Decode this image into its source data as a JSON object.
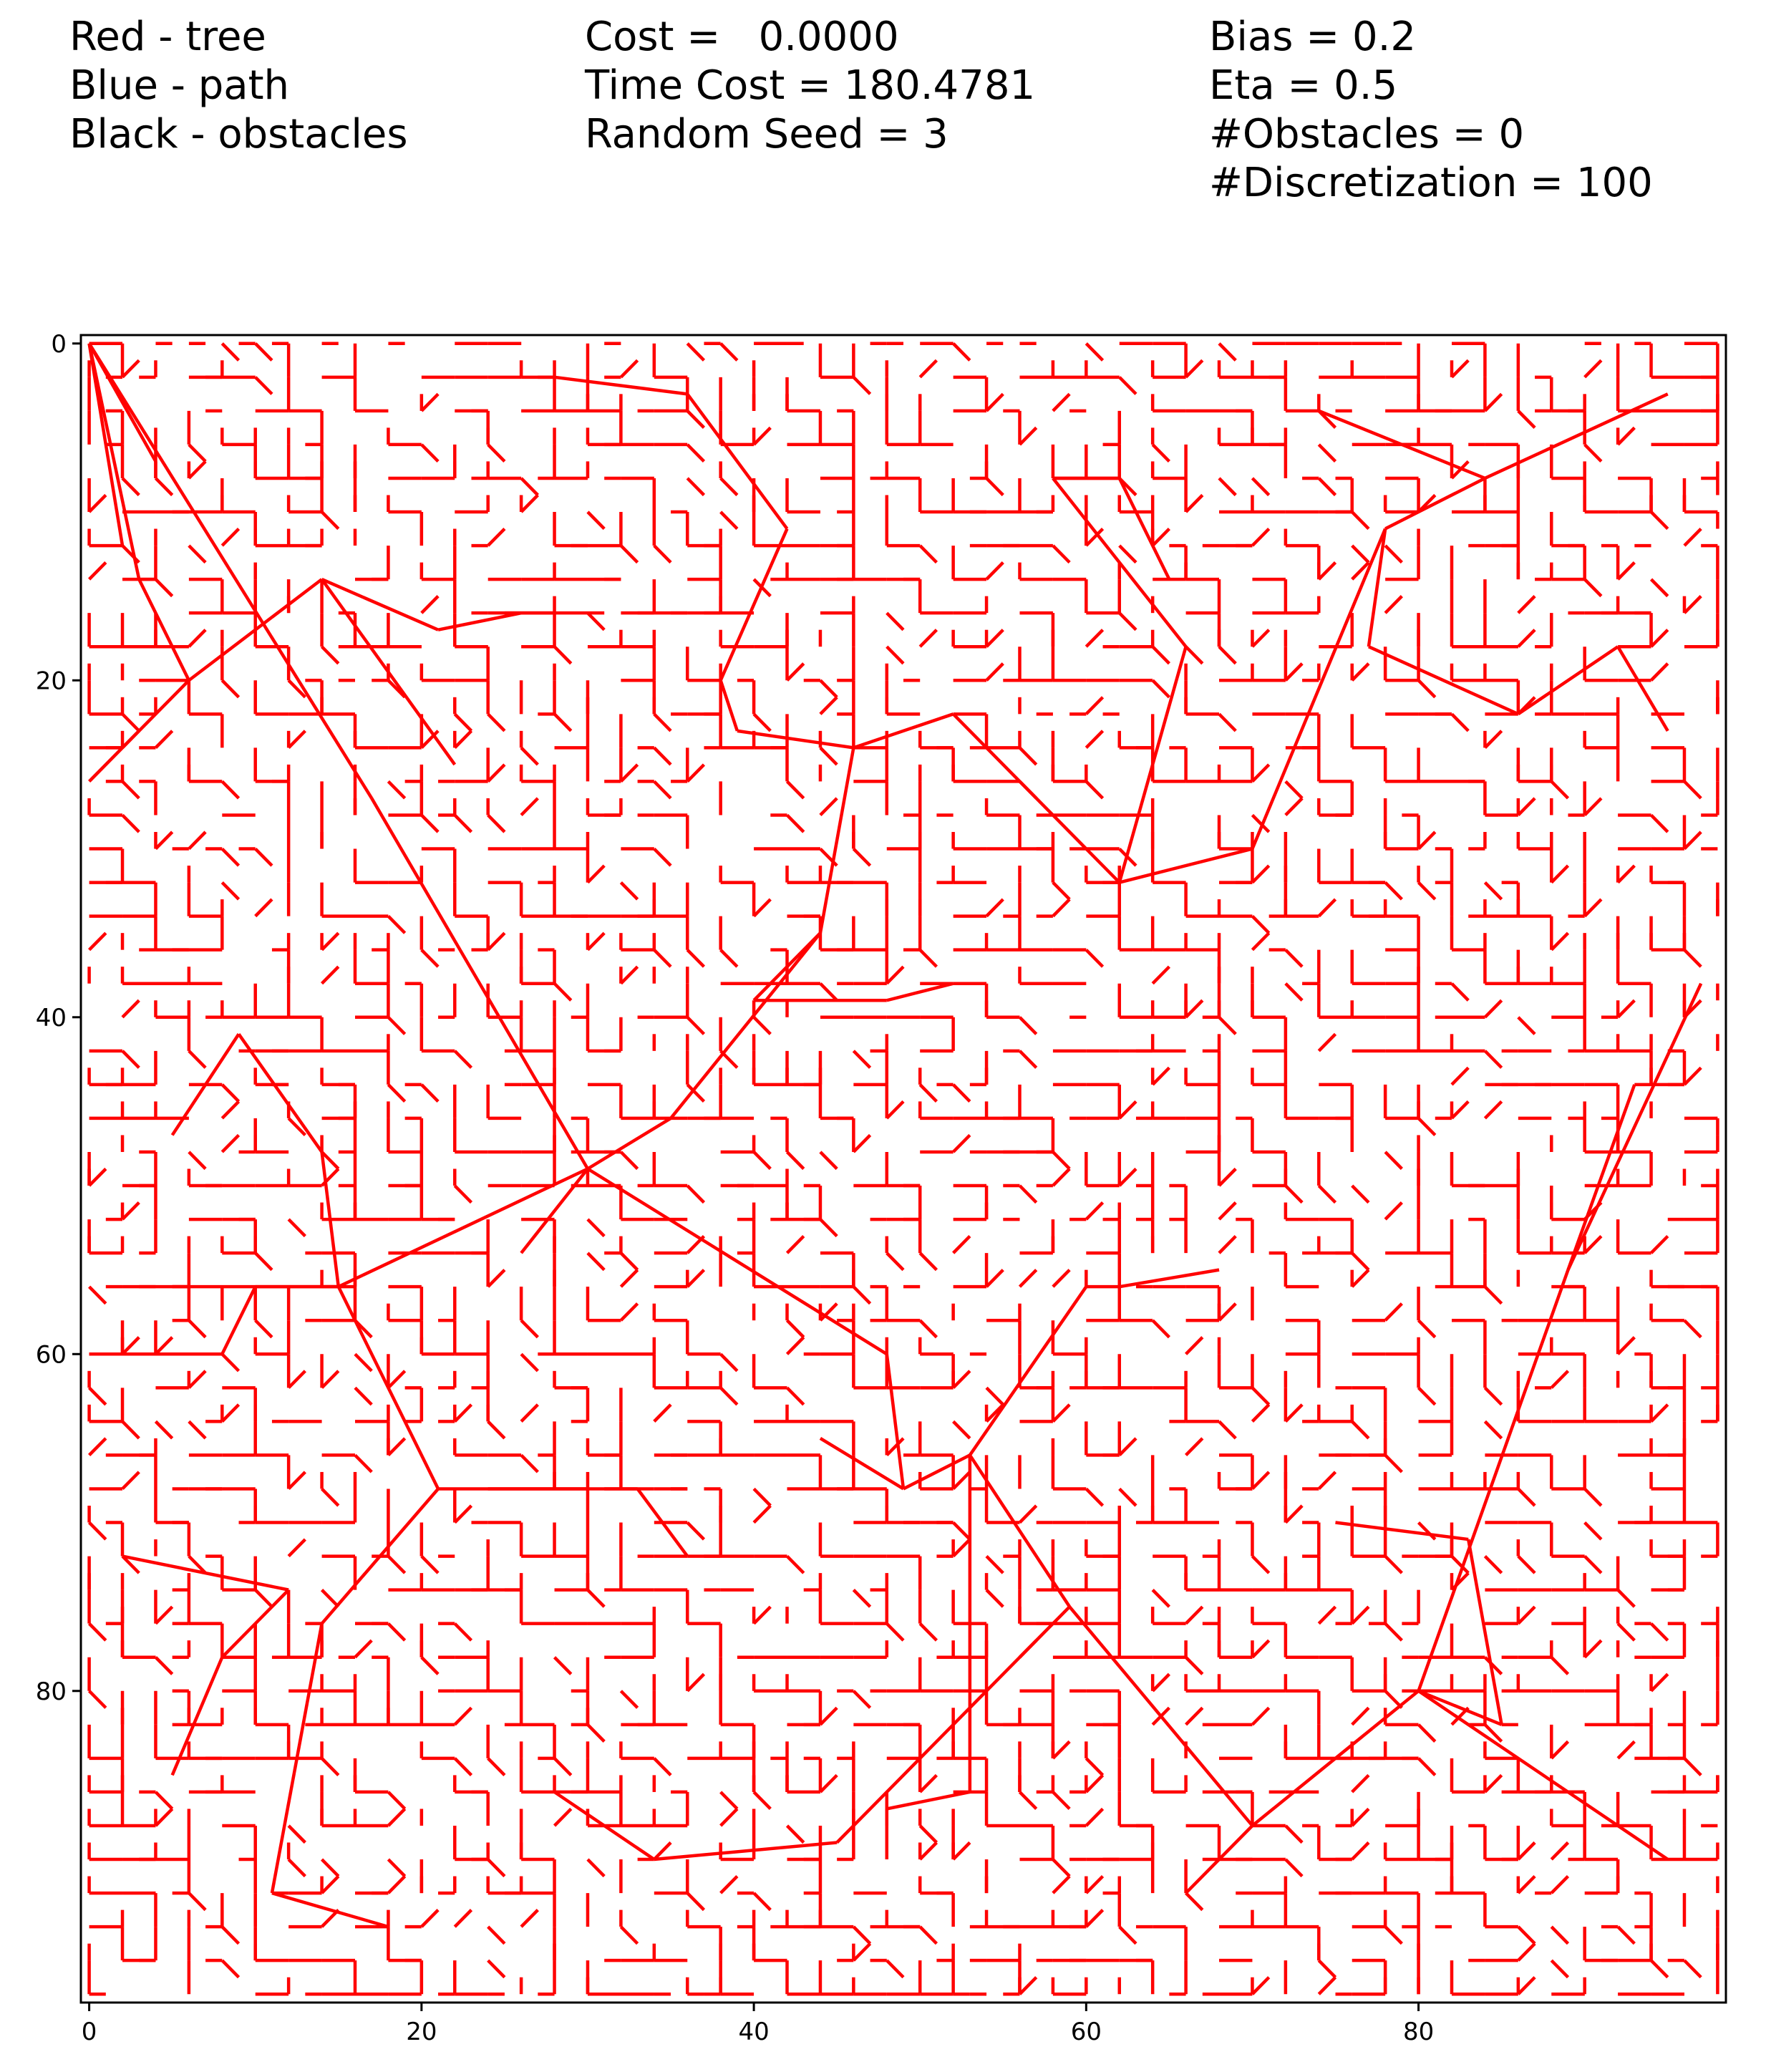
{
  "legend": {
    "col1": [
      "Red - tree",
      "Blue - path",
      "Black - obstacles"
    ],
    "col2": [
      "Cost =   0.0000",
      "Time Cost = 180.4781",
      "Random Seed = 3"
    ],
    "col3": [
      "Bias = 0.2",
      "Eta = 0.5",
      "#Obstacles = 0",
      "#Discretization = 100"
    ]
  },
  "chart_data": {
    "type": "line",
    "title": "",
    "xlabel": "",
    "ylabel": "",
    "xlim": [
      -0.5,
      98.5
    ],
    "ylim": [
      98.5,
      -0.5
    ],
    "y_inverted": true,
    "grid": false,
    "x_ticks": [
      0,
      20,
      40,
      60,
      80
    ],
    "y_ticks": [
      0,
      20,
      40,
      60,
      80
    ],
    "colors": {
      "tree": "#ff0000",
      "path": "#0000ff",
      "obstacles": "#000000",
      "axes": "#000000"
    },
    "obstacles": [],
    "path": [],
    "tree_hub_edges": [
      [
        [
          0,
          0
        ],
        [
          3,
          14
        ]
      ],
      [
        [
          0,
          0
        ],
        [
          17,
          27
        ]
      ],
      [
        [
          0,
          0
        ],
        [
          4,
          7
        ]
      ],
      [
        [
          0,
          0
        ],
        [
          2,
          12
        ]
      ],
      [
        [
          17,
          27
        ],
        [
          30,
          49
        ]
      ],
      [
        [
          30,
          49
        ],
        [
          35,
          46
        ]
      ],
      [
        [
          35,
          46
        ],
        [
          44,
          35
        ]
      ],
      [
        [
          44,
          35
        ],
        [
          46,
          24
        ]
      ],
      [
        [
          46,
          24
        ],
        [
          39,
          23
        ]
      ],
      [
        [
          39,
          23
        ],
        [
          38,
          20
        ]
      ],
      [
        [
          38,
          20
        ],
        [
          42,
          11
        ]
      ],
      [
        [
          42,
          11
        ],
        [
          36,
          3
        ]
      ],
      [
        [
          36,
          3
        ],
        [
          28,
          2
        ]
      ],
      [
        [
          46,
          24
        ],
        [
          52,
          22
        ]
      ],
      [
        [
          52,
          22
        ],
        [
          62,
          32
        ]
      ],
      [
        [
          62,
          32
        ],
        [
          70,
          30
        ]
      ],
      [
        [
          70,
          30
        ],
        [
          78,
          11
        ]
      ],
      [
        [
          78,
          11
        ],
        [
          84,
          8
        ]
      ],
      [
        [
          84,
          8
        ],
        [
          95,
          3
        ]
      ],
      [
        [
          84,
          8
        ],
        [
          74,
          4
        ]
      ],
      [
        [
          30,
          49
        ],
        [
          48,
          60
        ]
      ],
      [
        [
          48,
          60
        ],
        [
          49,
          68
        ]
      ],
      [
        [
          49,
          68
        ],
        [
          53,
          66
        ]
      ],
      [
        [
          53,
          66
        ],
        [
          60,
          56
        ]
      ],
      [
        [
          53,
          66
        ],
        [
          59,
          75
        ]
      ],
      [
        [
          59,
          75
        ],
        [
          70,
          88
        ]
      ],
      [
        [
          70,
          88
        ],
        [
          80,
          80
        ]
      ],
      [
        [
          80,
          80
        ],
        [
          89,
          55
        ]
      ],
      [
        [
          89,
          55
        ],
        [
          93,
          44
        ]
      ],
      [
        [
          89,
          55
        ],
        [
          97,
          38
        ]
      ],
      [
        [
          30,
          49
        ],
        [
          15,
          56
        ]
      ],
      [
        [
          15,
          56
        ],
        [
          21,
          68
        ]
      ],
      [
        [
          21,
          68
        ],
        [
          14,
          76
        ]
      ],
      [
        [
          14,
          76
        ],
        [
          11,
          92
        ]
      ],
      [
        [
          11,
          92
        ],
        [
          18,
          94
        ]
      ],
      [
        [
          21,
          68
        ],
        [
          33,
          68
        ]
      ],
      [
        [
          33,
          68
        ],
        [
          36,
          72
        ]
      ],
      [
        [
          3,
          14
        ],
        [
          6,
          20
        ]
      ],
      [
        [
          6,
          20
        ],
        [
          14,
          14
        ]
      ],
      [
        [
          14,
          14
        ],
        [
          22,
          25
        ]
      ],
      [
        [
          6,
          20
        ],
        [
          0,
          26
        ]
      ],
      [
        [
          14,
          14
        ],
        [
          21,
          17
        ]
      ],
      [
        [
          21,
          17
        ],
        [
          26,
          16
        ]
      ],
      [
        [
          26,
          16
        ],
        [
          31,
          16
        ]
      ],
      [
        [
          59,
          75
        ],
        [
          45,
          89
        ]
      ],
      [
        [
          45,
          89
        ],
        [
          34,
          90
        ]
      ],
      [
        [
          34,
          90
        ],
        [
          28,
          86
        ]
      ],
      [
        [
          80,
          80
        ],
        [
          95,
          90
        ]
      ],
      [
        [
          80,
          80
        ],
        [
          85,
          82
        ]
      ],
      [
        [
          85,
          82
        ],
        [
          83,
          71
        ]
      ],
      [
        [
          83,
          71
        ],
        [
          75,
          70
        ]
      ],
      [
        [
          62,
          32
        ],
        [
          66,
          18
        ]
      ],
      [
        [
          66,
          18
        ],
        [
          58,
          8
        ]
      ],
      [
        [
          58,
          8
        ],
        [
          62,
          8
        ]
      ],
      [
        [
          62,
          8
        ],
        [
          65,
          14
        ]
      ],
      [
        [
          78,
          11
        ],
        [
          77,
          18
        ]
      ],
      [
        [
          77,
          18
        ],
        [
          86,
          22
        ]
      ],
      [
        [
          86,
          22
        ],
        [
          92,
          18
        ]
      ],
      [
        [
          92,
          18
        ],
        [
          95,
          23
        ]
      ],
      [
        [
          44,
          35
        ],
        [
          40,
          39
        ]
      ],
      [
        [
          40,
          39
        ],
        [
          48,
          39
        ]
      ],
      [
        [
          48,
          39
        ],
        [
          52,
          38
        ]
      ],
      [
        [
          9,
          41
        ],
        [
          14,
          48
        ]
      ],
      [
        [
          14,
          48
        ],
        [
          15,
          56
        ]
      ],
      [
        [
          9,
          41
        ],
        [
          5,
          47
        ]
      ],
      [
        [
          12,
          74
        ],
        [
          2,
          72
        ]
      ],
      [
        [
          12,
          74
        ],
        [
          8,
          78
        ]
      ],
      [
        [
          8,
          78
        ],
        [
          5,
          85
        ]
      ],
      [
        [
          60,
          56
        ],
        [
          62,
          56
        ]
      ],
      [
        [
          62,
          56
        ],
        [
          68,
          55
        ]
      ],
      [
        [
          70,
          88
        ],
        [
          66,
          92
        ]
      ],
      [
        [
          49,
          68
        ],
        [
          44,
          65
        ]
      ],
      [
        [
          53,
          66
        ],
        [
          53,
          86
        ]
      ],
      [
        [
          53,
          86
        ],
        [
          48,
          87
        ]
      ],
      [
        [
          30,
          49
        ],
        [
          26,
          54
        ]
      ],
      [
        [
          15,
          56
        ],
        [
          5,
          56
        ]
      ],
      [
        [
          15,
          56
        ],
        [
          10,
          56
        ]
      ],
      [
        [
          10,
          56
        ],
        [
          8,
          60
        ]
      ],
      [
        [
          8,
          60
        ],
        [
          0,
          60
        ]
      ]
    ],
    "tree_edge_count_note": "",
    "seed": 3
  }
}
